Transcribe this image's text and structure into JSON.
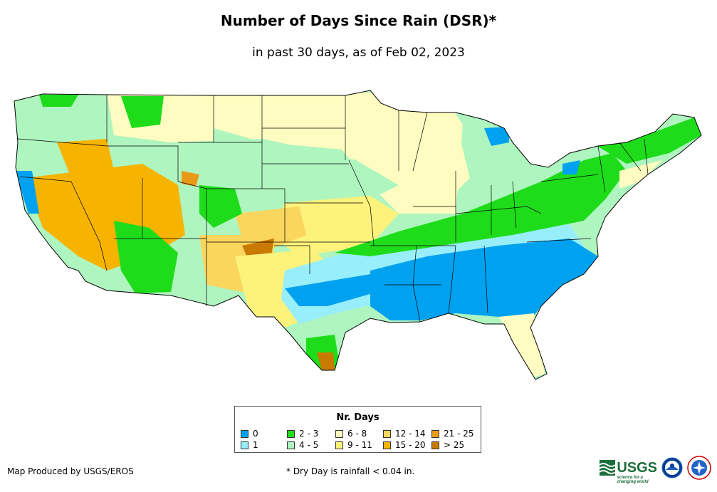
{
  "title": "Number of Days Since Rain (DSR)*",
  "subtitle": "in past 30 days, as of Feb 02, 2023",
  "legend": {
    "title": "Nr. Days",
    "items": [
      {
        "label": "0",
        "color": "#00a2f0"
      },
      {
        "label": "1",
        "color": "#98eefa"
      },
      {
        "label": "2 - 3",
        "color": "#1fdc1a"
      },
      {
        "label": "4 - 5",
        "color": "#aff5c0"
      },
      {
        "label": "6 - 8",
        "color": "#fefcc0"
      },
      {
        "label": "9 - 11",
        "color": "#fdf27b"
      },
      {
        "label": "12 - 14",
        "color": "#fad65e"
      },
      {
        "label": "15 - 20",
        "color": "#f6b400"
      },
      {
        "label": "21 - 25",
        "color": "#e89a16"
      },
      {
        "label": "> 25",
        "color": "#c97a00"
      }
    ]
  },
  "credit": "Map Produced by USGS/EROS",
  "footnote": "* Dry Day is rainfall < 0.04 in.",
  "logos": {
    "usgs_text": "USGS",
    "usgs_tagline": "science for a changing world"
  }
}
